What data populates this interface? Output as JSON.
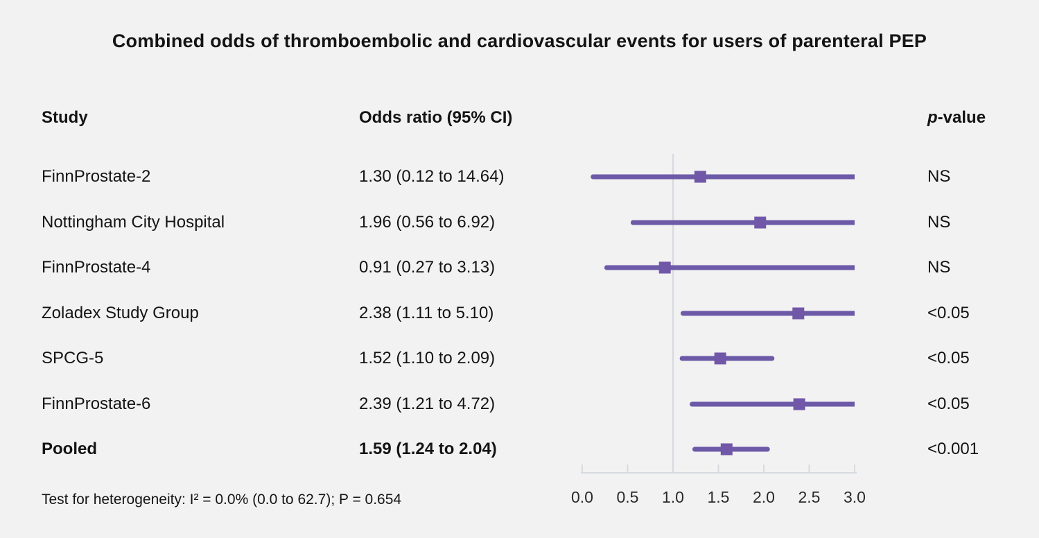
{
  "title": "Combined odds of thromboembolic and cardiovascular events for users of parenteral PEP",
  "columns": {
    "study": "Study",
    "odds_ratio": "Odds ratio (95% CI)",
    "p_value_p": "p",
    "p_value_rest": "-value"
  },
  "footer": "Test for heterogeneity: I² = 0.0% (0.0 to 62.7); P = 0.654",
  "colors": {
    "background": "#f2f2f2",
    "ci_line": "#6c5aa8",
    "marker": "#7157a8",
    "axis_line": "#d7dbe0",
    "ref_line": "#d7dbe0",
    "tick_label": "#2b2b2b"
  },
  "chart_data": {
    "type": "forest",
    "title": "Combined odds of thromboembolic and cardiovascular events for users of parenteral PEP",
    "x_axis": {
      "min": 0.0,
      "max": 3.0,
      "ticks": [
        0.0,
        0.5,
        1.0,
        1.5,
        2.0,
        2.5,
        3.0
      ],
      "tick_labels": [
        "0.0",
        "0.5",
        "1.0",
        "1.5",
        "2.0",
        "2.5",
        "3.0"
      ],
      "reference_line": 1.0,
      "clip_max": 3.0
    },
    "rows": [
      {
        "study": "FinnProstate-2",
        "or_text": "1.30 (0.12 to 14.64)",
        "estimate": 1.3,
        "ci_low": 0.12,
        "ci_high": 14.64,
        "p": "NS",
        "pooled": false
      },
      {
        "study": "Nottingham City Hospital",
        "or_text": "1.96 (0.56 to 6.92)",
        "estimate": 1.96,
        "ci_low": 0.56,
        "ci_high": 6.92,
        "p": "NS",
        "pooled": false
      },
      {
        "study": "FinnProstate-4",
        "or_text": "0.91 (0.27 to 3.13)",
        "estimate": 0.91,
        "ci_low": 0.27,
        "ci_high": 3.13,
        "p": "NS",
        "pooled": false
      },
      {
        "study": "Zoladex Study Group",
        "or_text": "2.38 (1.11 to 5.10)",
        "estimate": 2.38,
        "ci_low": 1.11,
        "ci_high": 5.1,
        "p": "<0.05",
        "pooled": false
      },
      {
        "study": "SPCG-5",
        "or_text": "1.52 (1.10 to 2.09)",
        "estimate": 1.52,
        "ci_low": 1.1,
        "ci_high": 2.09,
        "p": "<0.05",
        "pooled": false
      },
      {
        "study": "FinnProstate-6",
        "or_text": "2.39 (1.21 to 4.72)",
        "estimate": 2.39,
        "ci_low": 1.21,
        "ci_high": 4.72,
        "p": "<0.05",
        "pooled": false
      },
      {
        "study": "Pooled",
        "or_text": "1.59 (1.24 to 2.04)",
        "estimate": 1.59,
        "ci_low": 1.24,
        "ci_high": 2.04,
        "p": "<0.001",
        "pooled": true
      }
    ],
    "heterogeneity_note": "Test for heterogeneity: I² = 0.0% (0.0 to 62.7); P = 0.654"
  }
}
